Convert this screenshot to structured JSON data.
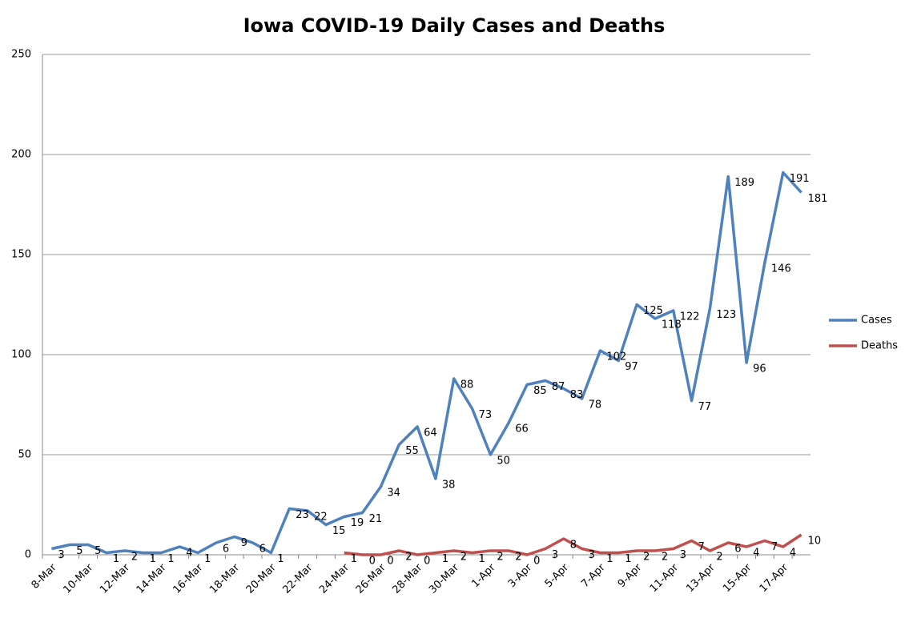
{
  "chart_data": {
    "type": "line",
    "title": "Iowa COVID-19 Daily Cases and Deaths",
    "categories": [
      "8-Mar",
      null,
      "10-Mar",
      null,
      "12-Mar",
      null,
      "14-Mar",
      null,
      "16-Mar",
      null,
      "18-Mar",
      null,
      "20-Mar",
      null,
      "22-Mar",
      null,
      "24-Mar",
      null,
      "26-Mar",
      null,
      "28-Mar",
      null,
      "30-Mar",
      null,
      "1-Apr",
      null,
      "3-Apr",
      null,
      "5-Apr",
      null,
      "7-Apr",
      null,
      "9-Apr",
      null,
      "11-Apr",
      null,
      "13-Apr",
      null,
      "15-Apr",
      null,
      "17-Apr",
      null
    ],
    "series": [
      {
        "name": "Cases",
        "color": "#4f81bd",
        "values": [
          3,
          5,
          5,
          1,
          2,
          1,
          1,
          4,
          1,
          6,
          9,
          6,
          1,
          23,
          22,
          15,
          19,
          21,
          34,
          55,
          64,
          38,
          88,
          73,
          50,
          66,
          85,
          87,
          83,
          78,
          102,
          97,
          125,
          118,
          122,
          77,
          123,
          189,
          96,
          146,
          191,
          181
        ]
      },
      {
        "name": "Deaths",
        "color": "#c0504d",
        "values": [
          null,
          null,
          null,
          null,
          null,
          null,
          null,
          null,
          null,
          null,
          null,
          null,
          null,
          null,
          null,
          null,
          1,
          0,
          0,
          2,
          0,
          1,
          2,
          1,
          2,
          2,
          0,
          3,
          8,
          3,
          1,
          1,
          2,
          2,
          3,
          7,
          2,
          6,
          4,
          7,
          4,
          10
        ]
      }
    ],
    "ylim": [
      0,
      250
    ],
    "yticks": [
      0,
      50,
      100,
      150,
      200,
      250
    ],
    "grid": true,
    "legend": "right",
    "data_labels": true
  }
}
